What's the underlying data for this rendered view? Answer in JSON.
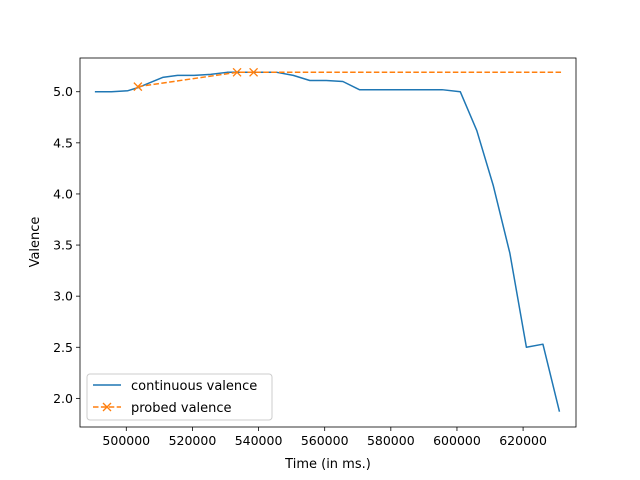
{
  "chart_data": {
    "type": "line",
    "title": "",
    "xlabel": "Time (in ms.)",
    "ylabel": "Valence",
    "xlim": [
      486000,
      636000
    ],
    "ylim": [
      1.72,
      5.33
    ],
    "xticks": [
      500000,
      520000,
      540000,
      560000,
      580000,
      600000,
      620000
    ],
    "xtick_labels": [
      "500000",
      "520000",
      "540000",
      "560000",
      "580000",
      "600000",
      "620000"
    ],
    "yticks": [
      2.0,
      2.5,
      3.0,
      3.5,
      4.0,
      4.5,
      5.0
    ],
    "ytick_labels": [
      "2.0",
      "2.5",
      "3.0",
      "3.5",
      "4.0",
      "4.5",
      "5.0"
    ],
    "grid": false,
    "legend_position": "lower-left",
    "series": [
      {
        "name": "continuous valence",
        "color": "#1f77b4",
        "style": "solid",
        "marker": "none",
        "x": [
          490500,
          495500,
          500500,
          503500,
          506500,
          511000,
          515500,
          520500,
          525500,
          530500,
          535500,
          540500,
          545500,
          550500,
          555500,
          560500,
          565500,
          570500,
          575500,
          580500,
          585500,
          590500,
          595500,
          601000,
          606000,
          611000,
          616000,
          621000,
          626000,
          631000
        ],
        "y": [
          5.0,
          5.0,
          5.01,
          5.04,
          5.08,
          5.14,
          5.16,
          5.16,
          5.17,
          5.19,
          5.19,
          5.19,
          5.19,
          5.16,
          5.11,
          5.11,
          5.1,
          5.02,
          5.02,
          5.02,
          5.02,
          5.02,
          5.02,
          5.0,
          4.62,
          4.08,
          3.42,
          2.5,
          2.53,
          1.87
        ]
      },
      {
        "name": "probed valence",
        "color": "#ff7f0e",
        "style": "dashed",
        "marker": "x",
        "x": [
          503500,
          533500,
          538500,
          632000
        ],
        "y": [
          5.05,
          5.19,
          5.19,
          5.19
        ],
        "marker_points": [
          0,
          1,
          2
        ]
      }
    ]
  }
}
